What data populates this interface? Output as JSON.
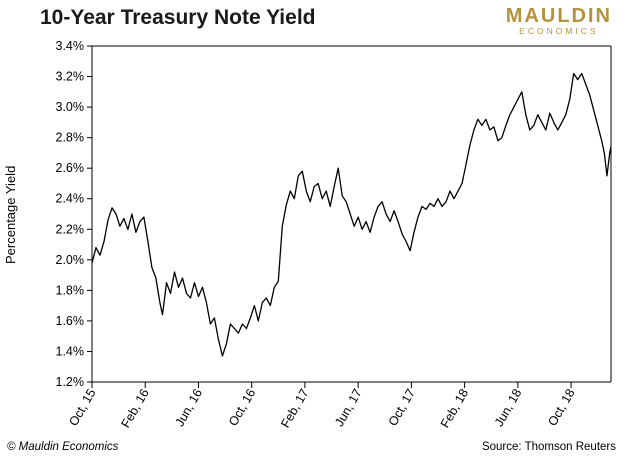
{
  "header": {
    "title": "10-Year Treasury Note Yield",
    "logo_top": "MAULDIN",
    "logo_bottom": "ECONOMICS",
    "brand_color": "#b5933d"
  },
  "footer": {
    "copyright": "© Mauldin Economics",
    "source": "Source: Thomson Reuters"
  },
  "chart_data": {
    "type": "line",
    "title": "10-Year Treasury Note Yield",
    "ylabel": "Percentage Yield",
    "xlabel": "",
    "ylim": [
      1.2,
      3.4
    ],
    "yticks": [
      "1.2%",
      "1.4%",
      "1.6%",
      "1.8%",
      "2.0%",
      "2.2%",
      "2.4%",
      "2.6%",
      "2.8%",
      "3.0%",
      "3.2%",
      "3.4%"
    ],
    "xticks": [
      "Oct, 15",
      "Feb, 16",
      "Jun, 16",
      "Oct, 16",
      "Feb, 17",
      "Jun, 17",
      "Oct, 17",
      "Feb, 18",
      "Jun, 18",
      "Oct, 18"
    ],
    "xlim": [
      0,
      39
    ],
    "x_unit": "months since Oct, 15",
    "grid": false,
    "legend": "none",
    "line_color": "#000000",
    "series": [
      {
        "values": [
          [
            0.0,
            1.98
          ],
          [
            0.3,
            2.08
          ],
          [
            0.6,
            2.03
          ],
          [
            0.9,
            2.12
          ],
          [
            1.2,
            2.26
          ],
          [
            1.5,
            2.34
          ],
          [
            1.8,
            2.3
          ],
          [
            2.1,
            2.22
          ],
          [
            2.4,
            2.27
          ],
          [
            2.7,
            2.2
          ],
          [
            3.0,
            2.3
          ],
          [
            3.3,
            2.18
          ],
          [
            3.6,
            2.25
          ],
          [
            3.9,
            2.28
          ],
          [
            4.2,
            2.12
          ],
          [
            4.5,
            1.95
          ],
          [
            4.8,
            1.88
          ],
          [
            5.1,
            1.72
          ],
          [
            5.3,
            1.64
          ],
          [
            5.6,
            1.85
          ],
          [
            5.9,
            1.78
          ],
          [
            6.2,
            1.92
          ],
          [
            6.5,
            1.82
          ],
          [
            6.8,
            1.88
          ],
          [
            7.1,
            1.78
          ],
          [
            7.4,
            1.75
          ],
          [
            7.7,
            1.85
          ],
          [
            8.0,
            1.76
          ],
          [
            8.3,
            1.82
          ],
          [
            8.6,
            1.72
          ],
          [
            8.9,
            1.58
          ],
          [
            9.2,
            1.62
          ],
          [
            9.5,
            1.48
          ],
          [
            9.8,
            1.37
          ],
          [
            10.1,
            1.45
          ],
          [
            10.4,
            1.58
          ],
          [
            10.7,
            1.55
          ],
          [
            11.0,
            1.52
          ],
          [
            11.3,
            1.58
          ],
          [
            11.6,
            1.55
          ],
          [
            11.9,
            1.62
          ],
          [
            12.2,
            1.7
          ],
          [
            12.5,
            1.6
          ],
          [
            12.8,
            1.72
          ],
          [
            13.1,
            1.75
          ],
          [
            13.4,
            1.7
          ],
          [
            13.7,
            1.82
          ],
          [
            14.0,
            1.86
          ],
          [
            14.3,
            2.22
          ],
          [
            14.6,
            2.36
          ],
          [
            14.9,
            2.45
          ],
          [
            15.2,
            2.4
          ],
          [
            15.5,
            2.55
          ],
          [
            15.8,
            2.58
          ],
          [
            16.1,
            2.45
          ],
          [
            16.4,
            2.38
          ],
          [
            16.7,
            2.48
          ],
          [
            17.0,
            2.5
          ],
          [
            17.3,
            2.4
          ],
          [
            17.6,
            2.45
          ],
          [
            17.9,
            2.35
          ],
          [
            18.2,
            2.48
          ],
          [
            18.5,
            2.6
          ],
          [
            18.8,
            2.42
          ],
          [
            19.1,
            2.38
          ],
          [
            19.4,
            2.3
          ],
          [
            19.7,
            2.22
          ],
          [
            20.0,
            2.28
          ],
          [
            20.3,
            2.2
          ],
          [
            20.6,
            2.25
          ],
          [
            20.9,
            2.18
          ],
          [
            21.2,
            2.28
          ],
          [
            21.5,
            2.35
          ],
          [
            21.8,
            2.38
          ],
          [
            22.1,
            2.3
          ],
          [
            22.4,
            2.25
          ],
          [
            22.7,
            2.32
          ],
          [
            23.0,
            2.25
          ],
          [
            23.3,
            2.17
          ],
          [
            23.6,
            2.12
          ],
          [
            23.9,
            2.06
          ],
          [
            24.2,
            2.18
          ],
          [
            24.5,
            2.28
          ],
          [
            24.8,
            2.35
          ],
          [
            25.1,
            2.33
          ],
          [
            25.4,
            2.37
          ],
          [
            25.7,
            2.35
          ],
          [
            26.0,
            2.4
          ],
          [
            26.3,
            2.35
          ],
          [
            26.6,
            2.38
          ],
          [
            26.9,
            2.45
          ],
          [
            27.2,
            2.4
          ],
          [
            27.5,
            2.45
          ],
          [
            27.8,
            2.5
          ],
          [
            28.1,
            2.62
          ],
          [
            28.4,
            2.75
          ],
          [
            28.7,
            2.85
          ],
          [
            29.0,
            2.92
          ],
          [
            29.3,
            2.88
          ],
          [
            29.6,
            2.92
          ],
          [
            29.9,
            2.85
          ],
          [
            30.2,
            2.87
          ],
          [
            30.5,
            2.78
          ],
          [
            30.8,
            2.8
          ],
          [
            31.1,
            2.88
          ],
          [
            31.4,
            2.95
          ],
          [
            31.7,
            3.0
          ],
          [
            32.0,
            3.05
          ],
          [
            32.3,
            3.1
          ],
          [
            32.6,
            2.95
          ],
          [
            32.9,
            2.85
          ],
          [
            33.2,
            2.88
          ],
          [
            33.5,
            2.95
          ],
          [
            33.8,
            2.9
          ],
          [
            34.1,
            2.85
          ],
          [
            34.4,
            2.96
          ],
          [
            34.7,
            2.9
          ],
          [
            35.0,
            2.85
          ],
          [
            35.3,
            2.9
          ],
          [
            35.6,
            2.95
          ],
          [
            35.9,
            3.05
          ],
          [
            36.2,
            3.22
          ],
          [
            36.5,
            3.18
          ],
          [
            36.8,
            3.22
          ],
          [
            37.1,
            3.15
          ],
          [
            37.4,
            3.08
          ],
          [
            37.7,
            2.98
          ],
          [
            38.0,
            2.88
          ],
          [
            38.3,
            2.78
          ],
          [
            38.5,
            2.7
          ],
          [
            38.7,
            2.55
          ],
          [
            38.9,
            2.7
          ],
          [
            39.0,
            2.74
          ]
        ]
      }
    ]
  }
}
